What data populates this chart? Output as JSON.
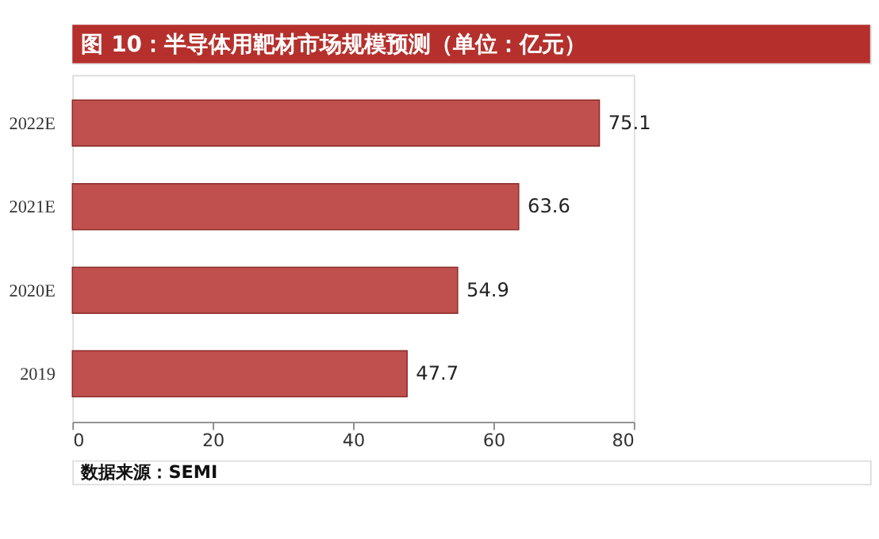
{
  "chart_data": {
    "type": "bar",
    "orientation": "horizontal",
    "title": "图 10：半导体用靶材市场规模预测（单位：亿元）",
    "categories": [
      "2022E",
      "2021E",
      "2020E",
      "2019"
    ],
    "values": [
      75.1,
      63.6,
      54.9,
      47.7
    ],
    "color": "#c0504d",
    "data_labels": true,
    "xlim": [
      0,
      80
    ],
    "xticks": [
      0,
      20,
      40,
      60,
      80
    ],
    "grid": false,
    "annotations": [
      "数据来源：SEMI"
    ]
  }
}
